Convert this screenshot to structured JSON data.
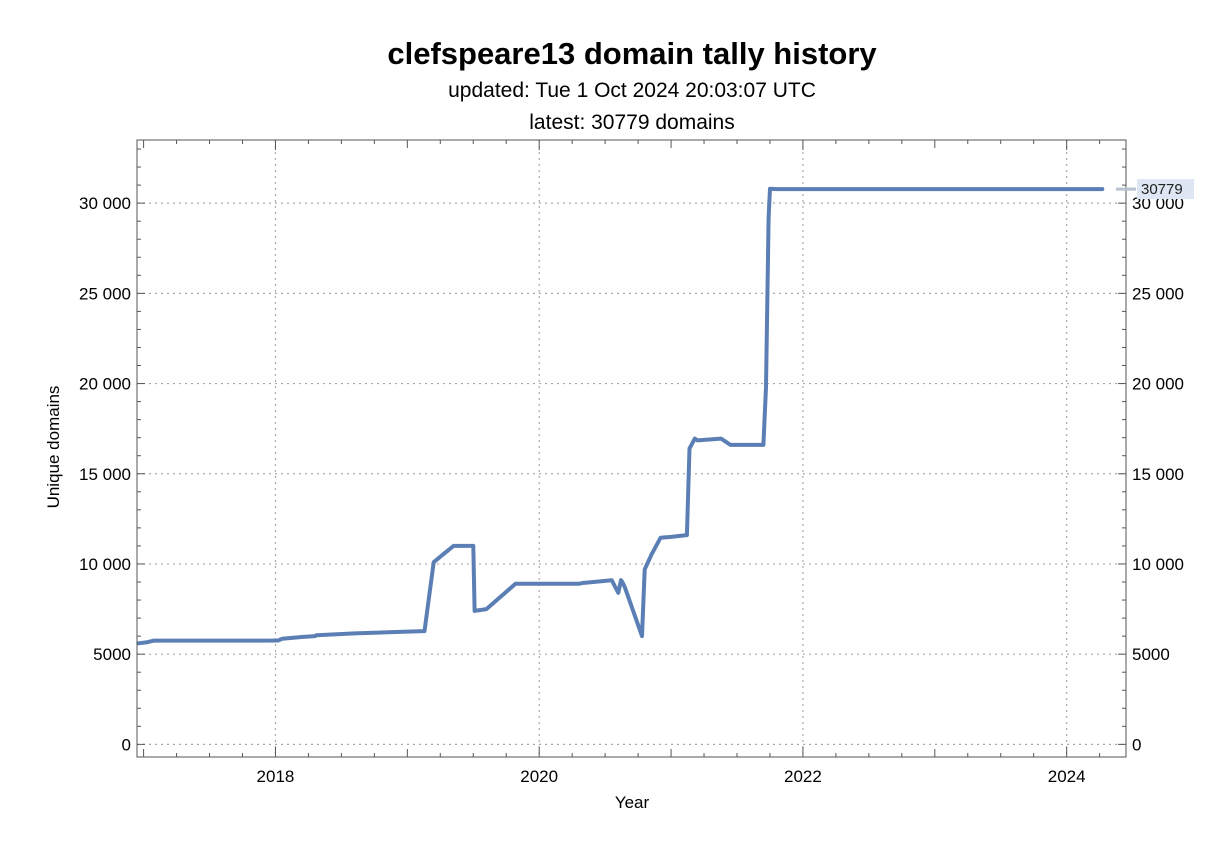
{
  "chart_data": {
    "type": "line",
    "title": "clefspeare13 domain tally history",
    "subtitle_updated": "updated: Tue 1 Oct 2024 20:03:07 UTC",
    "subtitle_latest": "latest: 30779 domains",
    "xlabel": "Year",
    "ylabel": "Unique domains",
    "xlim": [
      2016.95,
      2024.45
    ],
    "ylim": [
      -700,
      33500
    ],
    "x_ticks": [
      2018,
      2020,
      2022,
      2024
    ],
    "x_tick_labels": [
      "2018",
      "2020",
      "2022",
      "2024"
    ],
    "y_ticks": [
      0,
      5000,
      10000,
      15000,
      20000,
      25000,
      30000
    ],
    "y_tick_labels": [
      "0",
      "5000",
      "10 000",
      "15 000",
      "20 000",
      "25 000",
      "30 000"
    ],
    "grid": true,
    "end_label": "30779",
    "colors": {
      "series": "#5b7fb5",
      "grid": "#a8a8a8",
      "frame": "#555555",
      "end_label_bg": "#dde6f2"
    },
    "series": [
      {
        "x": [
          2016.96,
          2017.02,
          2017.08,
          2017.3,
          2017.6,
          2017.9,
          2018.02,
          2018.05,
          2018.2,
          2018.3,
          2018.31,
          2018.6,
          2019.0,
          2019.13,
          2019.2,
          2019.25,
          2019.35,
          2019.5,
          2019.51,
          2019.6,
          2019.82,
          2020.0,
          2020.3,
          2020.33,
          2020.34,
          2020.55,
          2020.6,
          2020.62,
          2020.63,
          2020.65,
          2020.78,
          2020.8,
          2020.85,
          2020.92,
          2021.0,
          2021.12,
          2021.14,
          2021.18,
          2021.2,
          2021.38,
          2021.45,
          2021.55,
          2021.7,
          2021.72,
          2021.74,
          2021.75,
          2021.8,
          2022.0,
          2022.5,
          2023.0,
          2023.5,
          2024.0,
          2024.27
        ],
        "values": [
          5600,
          5650,
          5750,
          5750,
          5750,
          5750,
          5760,
          5850,
          5950,
          6000,
          6050,
          6150,
          6250,
          6280,
          10100,
          10400,
          11000,
          11000,
          7400,
          7500,
          8900,
          8900,
          8900,
          8950,
          8950,
          9100,
          8400,
          9100,
          9000,
          8700,
          6000,
          9700,
          10500,
          11450,
          11500,
          11600,
          16400,
          16950,
          16850,
          16950,
          16600,
          16600,
          16600,
          19800,
          29200,
          30800,
          30779,
          30779,
          30779,
          30779,
          30779,
          30779,
          30779
        ]
      }
    ]
  }
}
